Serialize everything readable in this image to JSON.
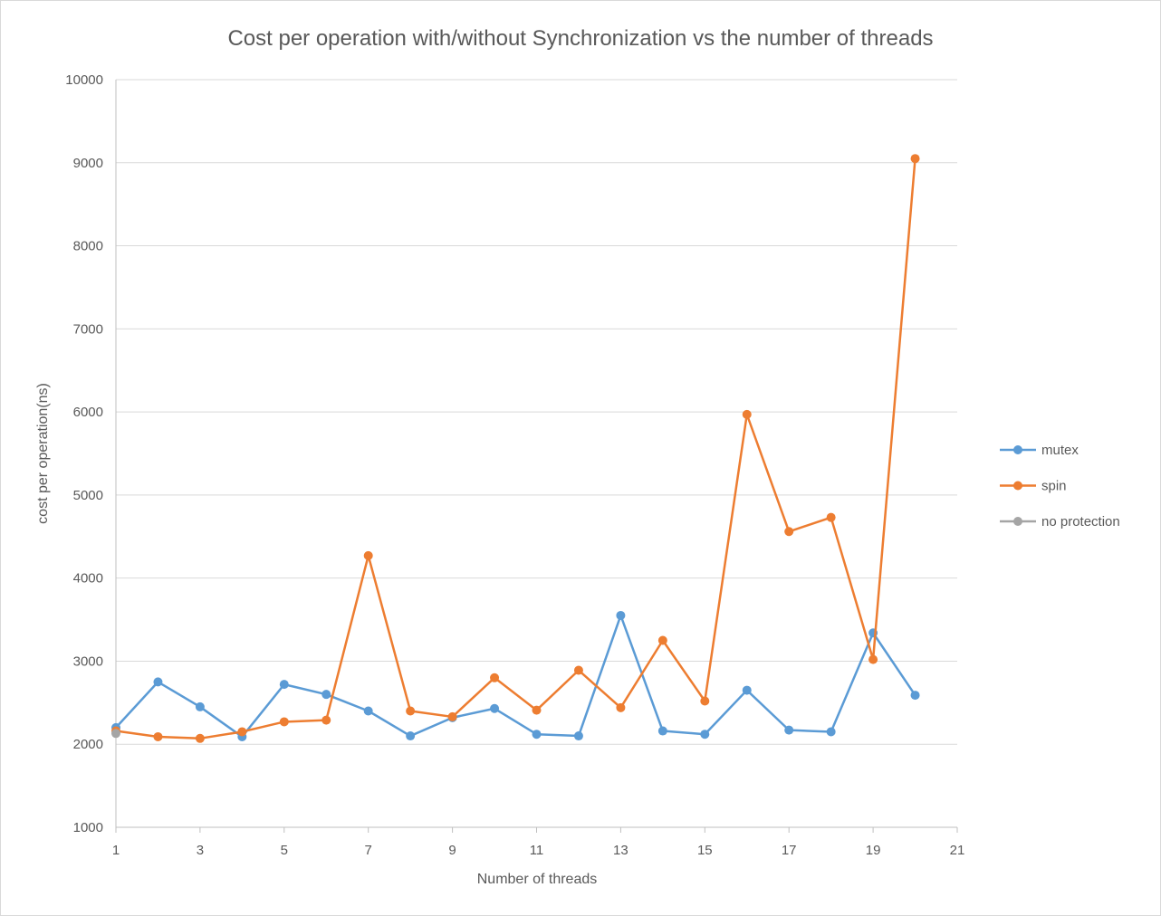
{
  "chart_data": {
    "type": "line",
    "title": "Cost per operation with/without Synchronization vs the number of threads",
    "xlabel": "Number of threads",
    "ylabel": "cost per operation(ns)",
    "xlim": [
      1,
      21
    ],
    "ylim": [
      1000,
      10000
    ],
    "xticks": [
      "1",
      "3",
      "5",
      "7",
      "9",
      "11",
      "13",
      "15",
      "17",
      "19",
      "21"
    ],
    "yticks": [
      "1000",
      "2000",
      "3000",
      "4000",
      "5000",
      "6000",
      "7000",
      "8000",
      "9000",
      "10000"
    ],
    "grid": "horizontal",
    "legend_position": "right",
    "series": [
      {
        "name": "mutex",
        "color": "#5b9bd5",
        "x": [
          1,
          2,
          3,
          4,
          5,
          6,
          7,
          8,
          9,
          10,
          11,
          12,
          13,
          14,
          15,
          16,
          17,
          18,
          19,
          20
        ],
        "y": [
          2200,
          2750,
          2450,
          2090,
          2720,
          2600,
          2400,
          2100,
          2320,
          2430,
          2120,
          2100,
          3550,
          2160,
          2120,
          2650,
          2170,
          2150,
          3340,
          2590
        ]
      },
      {
        "name": "spin",
        "color": "#ed7d31",
        "x": [
          1,
          2,
          3,
          4,
          5,
          6,
          7,
          8,
          9,
          10,
          11,
          12,
          13,
          14,
          15,
          16,
          17,
          18,
          19,
          20
        ],
        "y": [
          2160,
          2090,
          2070,
          2150,
          2270,
          2290,
          4270,
          2400,
          2330,
          2800,
          2410,
          2890,
          2440,
          3250,
          2520,
          5970,
          4560,
          4730,
          3020,
          9050
        ]
      },
      {
        "name": "no protection",
        "color": "#a5a5a5",
        "x": [
          1
        ],
        "y": [
          2130
        ]
      }
    ]
  }
}
